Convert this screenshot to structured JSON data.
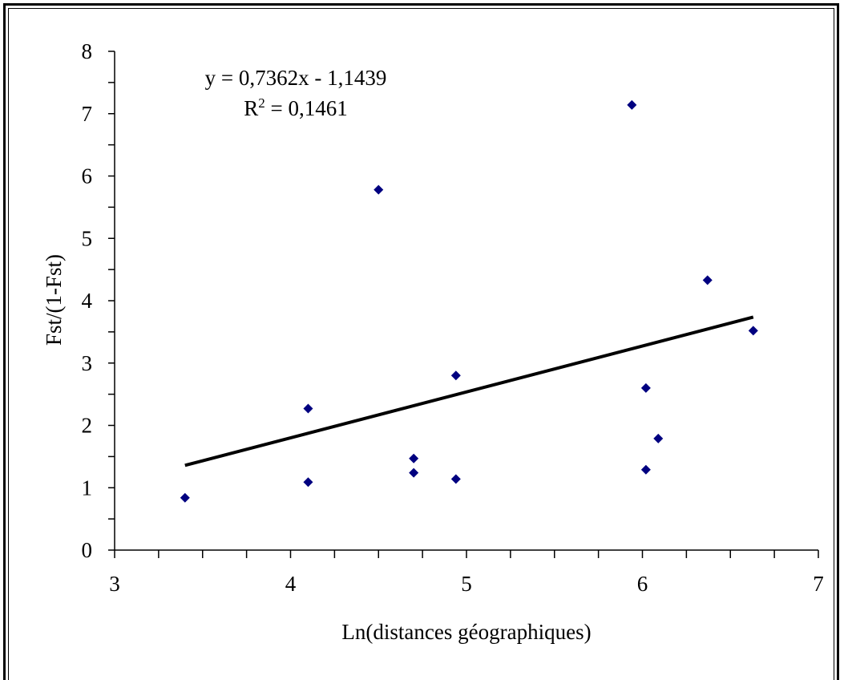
{
  "chart_data": {
    "type": "scatter",
    "xlabel": "Ln(distances géographiques)",
    "ylabel": "Fst/(1-Fst)",
    "xlim": [
      3,
      7
    ],
    "ylim": [
      0,
      8
    ],
    "x_ticks": [
      "3",
      "4",
      "5",
      "6",
      "7"
    ],
    "y_ticks": [
      "0",
      "1",
      "2",
      "3",
      "4",
      "5",
      "6",
      "7",
      "8"
    ],
    "x_minor_step": 0.25,
    "y_minor_step": 0.5,
    "grid": false,
    "marker": "diamond",
    "marker_color": "#000080",
    "trendline_color": "#000000",
    "points": [
      {
        "x": 3.4,
        "y": 0.84
      },
      {
        "x": 4.1,
        "y": 2.27
      },
      {
        "x": 4.1,
        "y": 1.09
      },
      {
        "x": 4.5,
        "y": 5.78
      },
      {
        "x": 4.7,
        "y": 1.47
      },
      {
        "x": 4.7,
        "y": 1.24
      },
      {
        "x": 4.94,
        "y": 2.8
      },
      {
        "x": 4.94,
        "y": 1.14
      },
      {
        "x": 5.94,
        "y": 7.14
      },
      {
        "x": 6.02,
        "y": 2.6
      },
      {
        "x": 6.02,
        "y": 1.29
      },
      {
        "x": 6.09,
        "y": 1.79
      },
      {
        "x": 6.37,
        "y": 4.33
      },
      {
        "x": 6.63,
        "y": 3.52
      }
    ],
    "trendline": {
      "slope": 0.7362,
      "intercept": -1.1439,
      "x_range": [
        3.4,
        6.63
      ],
      "equation_text": "y = 0,7362x - 1,1439",
      "r2_label": "R",
      "r2_superscript": "2",
      "r2_value_text": " = 0,1461"
    }
  }
}
